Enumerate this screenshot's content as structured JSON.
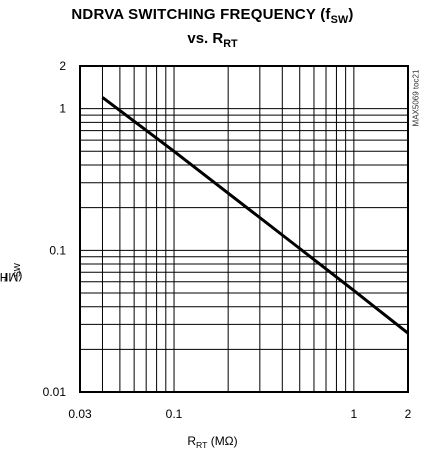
{
  "chart_data": {
    "type": "line",
    "title": "NDRVA SWITCHING FREQUENCY (f",
    "title_sub": "SW",
    "title_end": ")",
    "subtitle_prefix": "vs. R",
    "subtitle_sub": "RT",
    "xlabel_main": "R",
    "xlabel_sub": "RT",
    "xlabel_unit": " (MΩ)",
    "ylabel_main": "f",
    "ylabel_sub": "SW",
    "ylabel_unit": " (MHz)",
    "xscale": "log",
    "yscale": "log",
    "xlim": [
      0.03,
      2
    ],
    "ylim": [
      0.01,
      2
    ],
    "grid": true,
    "x_ticks": [
      {
        "value": 0.03,
        "label": "0.03"
      },
      {
        "value": 0.1,
        "label": "0.1"
      },
      {
        "value": 1,
        "label": "1"
      },
      {
        "value": 2,
        "label": "2"
      }
    ],
    "y_ticks": [
      {
        "value": 2,
        "label": "2"
      },
      {
        "value": 1,
        "label": "1"
      },
      {
        "value": 0.1,
        "label": "0.1"
      },
      {
        "value": 0.01,
        "label": "0.01"
      }
    ],
    "series": [
      {
        "x": [
          0.04,
          0.1,
          0.5,
          1,
          2
        ],
        "y": [
          1.2,
          0.5,
          0.103,
          0.052,
          0.026
        ]
      }
    ],
    "annotation": "MAX5069 toc21"
  }
}
